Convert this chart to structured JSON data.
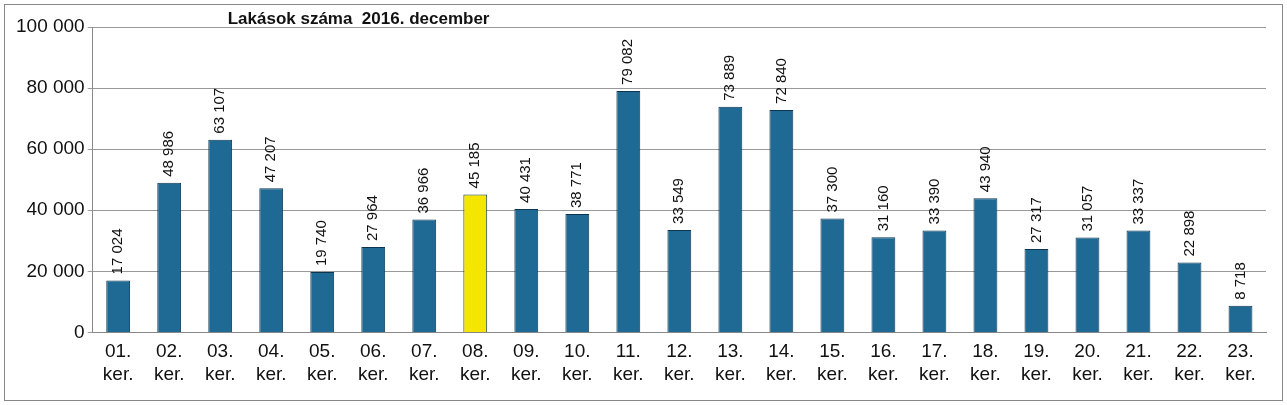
{
  "chart_data": {
    "type": "bar",
    "title": "Lakások száma  2016. december",
    "categories": [
      "01. ker.",
      "02. ker.",
      "03. ker.",
      "04. ker.",
      "05. ker.",
      "06. ker.",
      "07. ker.",
      "08. ker.",
      "09. ker.",
      "10. ker.",
      "11. ker.",
      "12. ker.",
      "13. ker.",
      "14. ker.",
      "15. ker.",
      "16. ker.",
      "17. ker.",
      "18. ker.",
      "19. ker.",
      "20. ker.",
      "21. ker.",
      "22. ker.",
      "23. ker."
    ],
    "values": [
      17024,
      48986,
      63107,
      47207,
      19740,
      27964,
      36966,
      45185,
      40431,
      38771,
      79082,
      33549,
      73889,
      72840,
      37300,
      31160,
      33390,
      43940,
      27317,
      31057,
      33337,
      22898,
      8718
    ],
    "value_labels": [
      "17 024",
      "48 986",
      "63 107",
      "47 207",
      "19 740",
      "27 964",
      "36 966",
      "45 185",
      "40 431",
      "38 771",
      "79 082",
      "33 549",
      "73 889",
      "72 840",
      "37 300",
      "31 160",
      "33 390",
      "43 940",
      "27 317",
      "31 057",
      "33 337",
      "22 898",
      "8 718"
    ],
    "colors": [
      "#1f6a94",
      "#1f6a94",
      "#1f6a94",
      "#1f6a94",
      "#1f6a94",
      "#1f6a94",
      "#1f6a94",
      "#f5e600",
      "#1f6a94",
      "#1f6a94",
      "#1f6a94",
      "#1f6a94",
      "#1f6a94",
      "#1f6a94",
      "#1f6a94",
      "#1f6a94",
      "#1f6a94",
      "#1f6a94",
      "#1f6a94",
      "#1f6a94",
      "#1f6a94",
      "#1f6a94",
      "#1f6a94"
    ],
    "ylim": [
      0,
      100000
    ],
    "yticks": [
      {
        "value": 0,
        "label": "0"
      },
      {
        "value": 20000,
        "label": "20 000"
      },
      {
        "value": 40000,
        "label": "40 000"
      },
      {
        "value": 60000,
        "label": "60 000"
      },
      {
        "value": 80000,
        "label": "80 000"
      },
      {
        "value": 100000,
        "label": "100 000"
      }
    ],
    "grid": "y",
    "legend": false
  }
}
